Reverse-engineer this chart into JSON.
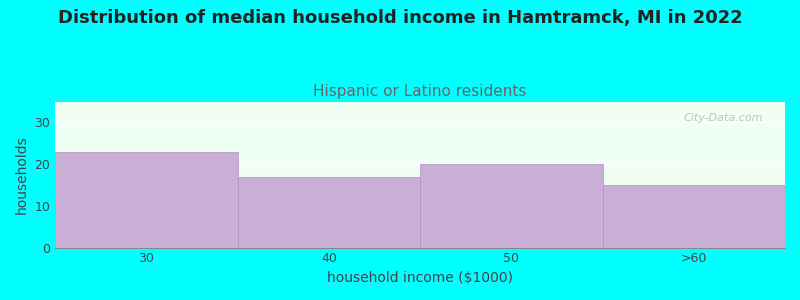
{
  "title": "Distribution of median household income in Hamtramck, MI in 2022",
  "subtitle": "Hispanic or Latino residents",
  "xlabel": "household income ($1000)",
  "ylabel": "households",
  "categories": [
    "30",
    "40",
    "50",
    ">60"
  ],
  "values": [
    23,
    17,
    20,
    15
  ],
  "bar_color": "#c9aed6",
  "bar_edge_color": "#b090c0",
  "background_color": "#00ffff",
  "plot_bg_color": "#f0fff4",
  "ylim": [
    0,
    35
  ],
  "yticks": [
    0,
    10,
    20,
    30
  ],
  "title_fontsize": 13,
  "subtitle_fontsize": 11,
  "subtitle_color": "#666666",
  "axis_label_fontsize": 10,
  "tick_label_fontsize": 9,
  "watermark": "City-Data.com",
  "bar_width": 1.0
}
